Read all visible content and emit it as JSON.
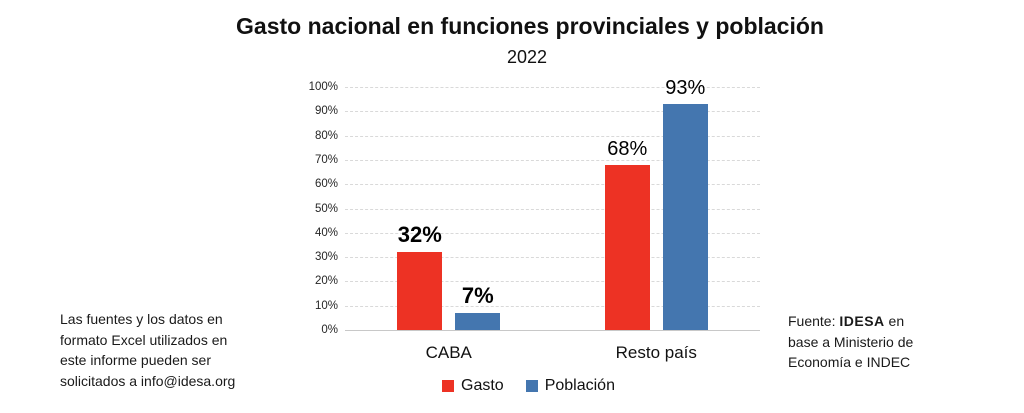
{
  "chart_data": {
    "type": "bar",
    "title": "Gasto nacional en funciones provinciales y población",
    "subtitle": "2022",
    "categories": [
      "CABA",
      "Resto país"
    ],
    "series": [
      {
        "name": "Gasto",
        "color": "#ed3224",
        "values": [
          32,
          68
        ]
      },
      {
        "name": "Población",
        "color": "#4476af",
        "values": [
          7,
          93
        ]
      }
    ],
    "xlabel": "",
    "ylabel": "",
    "ylim": [
      0,
      100
    ],
    "ytick_step": 10,
    "ytick_suffix": "%",
    "value_suffix": "%",
    "grid": true,
    "gridline_style": "dashed",
    "legend_position": "bottom",
    "category_label_bold": [
      true,
      false
    ]
  },
  "footnote": {
    "lines": [
      "Las fuentes y los datos en",
      "formato Excel utilizados en",
      "este informe pueden ser",
      "solicitados a info@idesa.org"
    ]
  },
  "source": {
    "prefix": "Fuente: ",
    "brand": "IDESA",
    "line1_suffix": " en",
    "line2": "base a Ministerio de",
    "line3": "Economía e INDEC"
  }
}
